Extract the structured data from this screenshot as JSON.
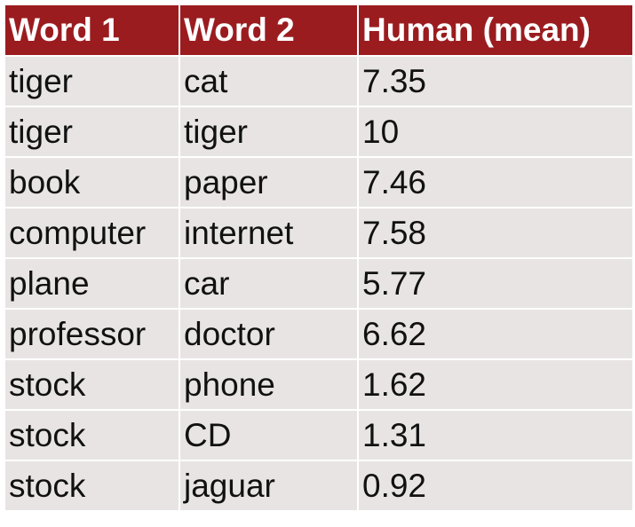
{
  "table": {
    "headers": [
      "Word 1",
      "Word 2",
      "Human (mean)"
    ],
    "rows": [
      [
        "tiger",
        "cat",
        "7.35"
      ],
      [
        "tiger",
        "tiger",
        "10"
      ],
      [
        "book",
        "paper",
        "7.46"
      ],
      [
        "computer",
        "internet",
        "7.58"
      ],
      [
        "plane",
        "car",
        "5.77"
      ],
      [
        "professor",
        "doctor",
        "6.62"
      ],
      [
        "stock",
        "phone",
        "1.62"
      ],
      [
        "stock",
        "CD",
        "1.31"
      ],
      [
        "stock",
        "jaguar",
        "0.92"
      ]
    ]
  },
  "colors": {
    "header_background": "#9b1c1f",
    "header_text": "#ffffff",
    "row_background": "#e9e4e4",
    "row_text": "#111111"
  }
}
